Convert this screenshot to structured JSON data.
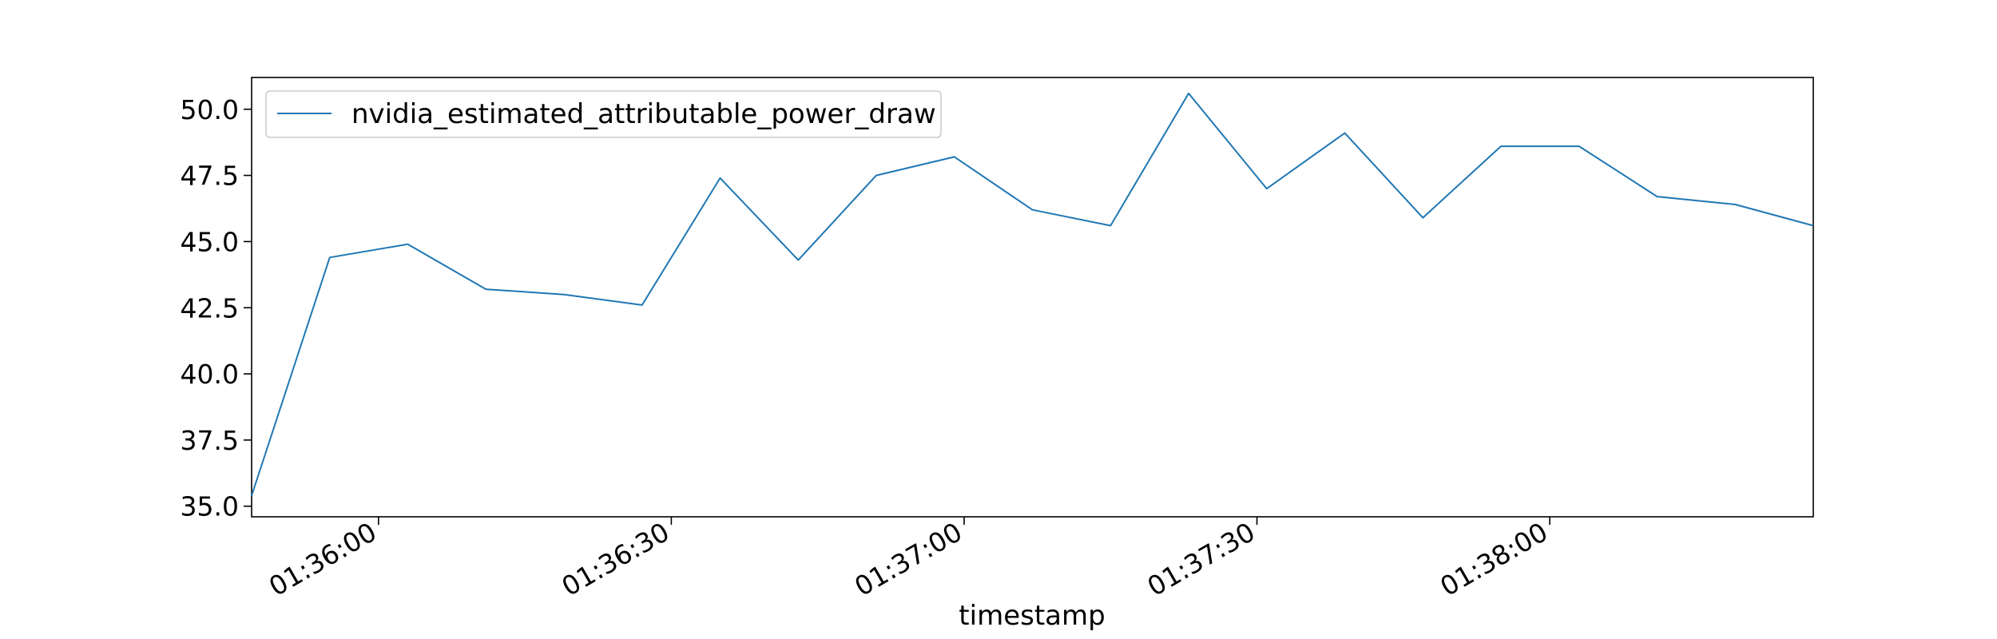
{
  "chart_data": {
    "type": "line",
    "title": "",
    "xlabel": "timestamp",
    "ylabel": "",
    "ylim": [
      34.6,
      51.2
    ],
    "xlim": [
      "01:35:47",
      "01:38:27"
    ],
    "grid": false,
    "legend": {
      "placement": "top-left",
      "entries": [
        "nvidia_estimated_attributable_power_draw"
      ]
    },
    "y_ticks": [
      "35.0",
      "37.5",
      "40.0",
      "42.5",
      "45.0",
      "47.5",
      "50.0"
    ],
    "x_ticks": [
      {
        "time": "01:36:00",
        "label": "01:36:00"
      },
      {
        "time": "01:36:30",
        "label": "01:36:30"
      },
      {
        "time": "01:37:00",
        "label": "01:37:00"
      },
      {
        "time": "01:37:30",
        "label": "01:37:30"
      },
      {
        "time": "01:38:00",
        "label": "01:38:00"
      }
    ],
    "series": [
      {
        "name": "nvidia_estimated_attributable_power_draw",
        "color": "#1f77b4",
        "x": [
          "01:35:47",
          "01:35:55",
          "01:36:03",
          "01:36:11",
          "01:36:19",
          "01:36:27",
          "01:36:35",
          "01:36:43",
          "01:36:51",
          "01:36:59",
          "01:37:07",
          "01:37:15",
          "01:37:23",
          "01:37:31",
          "01:37:39",
          "01:37:47",
          "01:37:55",
          "01:38:03",
          "01:38:11",
          "01:38:19",
          "01:38:27"
        ],
        "values": [
          35.4,
          44.4,
          44.9,
          43.2,
          43.0,
          42.6,
          47.4,
          44.3,
          47.5,
          48.2,
          46.2,
          45.6,
          50.6,
          47.0,
          49.1,
          45.9,
          48.6,
          48.6,
          46.7,
          46.4,
          45.6
        ]
      }
    ]
  }
}
